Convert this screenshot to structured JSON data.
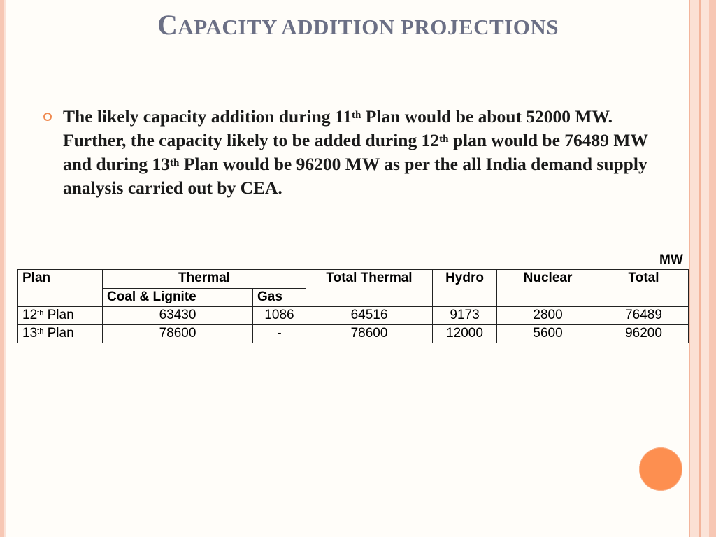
{
  "title": {
    "first_letter": "C",
    "rest_word1": "apacity",
    "rest": " addition projections"
  },
  "bullet": {
    "parts": [
      "The likely capacity addition during 11",
      "th",
      " Plan would be about 52000 MW. Further, the capacity likely to be added during 12",
      "th",
      " plan would be 76489 MW and during 13",
      "th",
      " Plan would be 96200 MW as per the all India demand supply analysis carried out by CEA."
    ],
    "icon": "ring-bullet-icon"
  },
  "unit_label": "MW",
  "table": {
    "headers": {
      "plan": "Plan",
      "thermal": "Thermal",
      "coal_lignite": "Coal & Lignite",
      "gas": "Gas",
      "total_thermal": "Total Thermal",
      "hydro": "Hydro",
      "nuclear": "Nuclear",
      "total": "Total"
    },
    "rows": [
      {
        "plan_num": "12",
        "plan_sup": "th",
        "plan_word": " Plan",
        "coal": "63430",
        "gas": "1086",
        "total_thermal": "64516",
        "hydro": "9173",
        "nuclear": "2800",
        "total": "76489"
      },
      {
        "plan_num": "13",
        "plan_sup": "th",
        "plan_word": " Plan",
        "coal": "78600",
        "gas": "-",
        "total_thermal": "78600",
        "hydro": "12000",
        "nuclear": "5600",
        "total": "96200"
      }
    ]
  },
  "colors": {
    "title": "#6b6f85",
    "accent": "#fd8f50",
    "border_stripe": "#f7c7b4"
  }
}
